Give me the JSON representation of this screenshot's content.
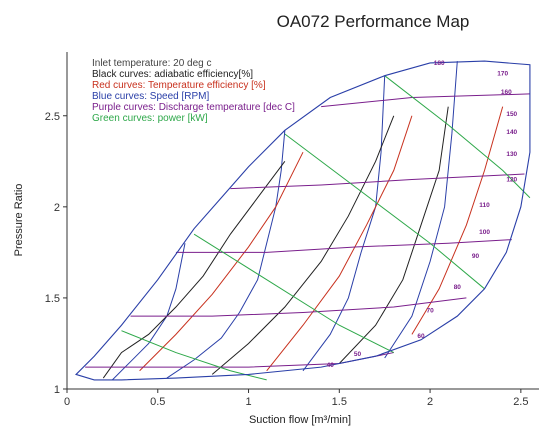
{
  "chart_data": {
    "type": "line",
    "title": "OA072  Performance Map",
    "xlabel": "Suction flow [m³/min]",
    "ylabel": "Pressure Ratio",
    "xlim": [
      0,
      2.6
    ],
    "ylim": [
      1,
      2.85
    ],
    "xticks": [
      "0",
      "0.5",
      "1",
      "1.5",
      "2",
      "2.5"
    ],
    "yticks": [
      "1",
      "1.5",
      "2",
      "2.5"
    ],
    "grid": false,
    "notes": [
      {
        "text": "Inlet temperature: 20 deg c",
        "color": "#444444"
      },
      {
        "text": "Black curves:  adiabatic efficiency[%]",
        "color": "#222222"
      },
      {
        "text": "Red curves: Temperature efficiency [%]",
        "color": "#c8311e"
      },
      {
        "text": "Blue curves: Speed [RPM]",
        "color": "#2a3fa8"
      },
      {
        "text": "Purple curves: Discharge temperature [dec C]",
        "color": "#7a1f8c"
      },
      {
        "text": "Green curves: power [kW]",
        "color": "#2ea84a"
      }
    ],
    "colors": {
      "adiabatic_efficiency": "#222222",
      "temperature_efficiency": "#c8311e",
      "speed": "#2a3fa8",
      "discharge_temperature": "#7a1f8c",
      "power": "#2ea84a"
    },
    "boundary": {
      "upper": [
        [
          0.05,
          1.08
        ],
        [
          0.15,
          1.18
        ],
        [
          0.3,
          1.35
        ],
        [
          0.5,
          1.6
        ],
        [
          0.7,
          1.88
        ],
        [
          0.85,
          2.05
        ],
        [
          1.0,
          2.22
        ],
        [
          1.2,
          2.42
        ],
        [
          1.45,
          2.6
        ],
        [
          1.75,
          2.72
        ],
        [
          2.0,
          2.79
        ],
        [
          2.3,
          2.8
        ],
        [
          2.55,
          2.78
        ]
      ],
      "lower": [
        [
          0.05,
          1.08
        ],
        [
          0.15,
          1.05
        ],
        [
          0.3,
          1.05
        ],
        [
          0.6,
          1.06
        ],
        [
          1.0,
          1.08
        ],
        [
          1.4,
          1.12
        ],
        [
          1.7,
          1.18
        ],
        [
          1.95,
          1.27
        ],
        [
          2.15,
          1.4
        ],
        [
          2.3,
          1.55
        ],
        [
          2.42,
          1.75
        ],
        [
          2.5,
          2.0
        ],
        [
          2.55,
          2.3
        ],
        [
          2.55,
          2.78
        ]
      ]
    },
    "series": [
      {
        "group": "speed",
        "points": [
          [
            0.55,
            1.06
          ],
          [
            0.7,
            1.16
          ],
          [
            0.85,
            1.28
          ],
          [
            0.95,
            1.42
          ],
          [
            1.05,
            1.6
          ],
          [
            1.1,
            1.8
          ],
          [
            1.15,
            2.0
          ],
          [
            1.18,
            2.2
          ],
          [
            1.2,
            2.42
          ]
        ]
      },
      {
        "group": "speed",
        "points": [
          [
            1.3,
            1.1
          ],
          [
            1.45,
            1.3
          ],
          [
            1.55,
            1.5
          ],
          [
            1.62,
            1.75
          ],
          [
            1.7,
            2.0
          ],
          [
            1.73,
            2.3
          ],
          [
            1.75,
            2.72
          ]
        ]
      },
      {
        "group": "speed",
        "points": [
          [
            1.75,
            1.17
          ],
          [
            1.9,
            1.4
          ],
          [
            2.0,
            1.7
          ],
          [
            2.08,
            2.0
          ],
          [
            2.12,
            2.4
          ],
          [
            2.15,
            2.8
          ]
        ]
      },
      {
        "group": "speed",
        "points": [
          [
            0.25,
            1.05
          ],
          [
            0.35,
            1.15
          ],
          [
            0.45,
            1.25
          ],
          [
            0.55,
            1.4
          ],
          [
            0.6,
            1.55
          ],
          [
            0.65,
            1.8
          ]
        ]
      },
      {
        "group": "adiabatic_efficiency",
        "points": [
          [
            0.2,
            1.06
          ],
          [
            0.3,
            1.2
          ],
          [
            0.45,
            1.3
          ],
          [
            0.6,
            1.45
          ],
          [
            0.75,
            1.62
          ],
          [
            0.9,
            1.85
          ],
          [
            1.05,
            2.05
          ],
          [
            1.2,
            2.25
          ]
        ]
      },
      {
        "group": "adiabatic_efficiency",
        "points": [
          [
            0.8,
            1.08
          ],
          [
            1.0,
            1.25
          ],
          [
            1.2,
            1.45
          ],
          [
            1.4,
            1.7
          ],
          [
            1.55,
            1.95
          ],
          [
            1.7,
            2.25
          ],
          [
            1.8,
            2.5
          ]
        ]
      },
      {
        "group": "adiabatic_efficiency",
        "points": [
          [
            1.5,
            1.14
          ],
          [
            1.7,
            1.35
          ],
          [
            1.85,
            1.6
          ],
          [
            1.95,
            1.9
          ],
          [
            2.05,
            2.2
          ],
          [
            2.1,
            2.55
          ]
        ]
      },
      {
        "group": "temperature_efficiency",
        "points": [
          [
            0.4,
            1.1
          ],
          [
            0.6,
            1.3
          ],
          [
            0.8,
            1.52
          ],
          [
            1.0,
            1.78
          ],
          [
            1.15,
            2.0
          ],
          [
            1.3,
            2.3
          ]
        ]
      },
      {
        "group": "temperature_efficiency",
        "points": [
          [
            1.1,
            1.1
          ],
          [
            1.3,
            1.35
          ],
          [
            1.5,
            1.62
          ],
          [
            1.65,
            1.9
          ],
          [
            1.8,
            2.2
          ],
          [
            1.9,
            2.5
          ]
        ]
      },
      {
        "group": "temperature_efficiency",
        "points": [
          [
            1.9,
            1.3
          ],
          [
            2.05,
            1.55
          ],
          [
            2.2,
            1.9
          ],
          [
            2.3,
            2.2
          ],
          [
            2.4,
            2.55
          ]
        ]
      },
      {
        "group": "discharge_temperature",
        "points": [
          [
            0.1,
            1.12
          ],
          [
            0.5,
            1.12
          ],
          [
            1.0,
            1.12
          ],
          [
            1.5,
            1.14
          ],
          [
            1.8,
            1.2
          ]
        ]
      },
      {
        "group": "discharge_temperature",
        "points": [
          [
            0.35,
            1.4
          ],
          [
            0.8,
            1.4
          ],
          [
            1.3,
            1.42
          ],
          [
            1.8,
            1.45
          ],
          [
            2.2,
            1.5
          ]
        ]
      },
      {
        "group": "discharge_temperature",
        "points": [
          [
            0.6,
            1.75
          ],
          [
            1.1,
            1.75
          ],
          [
            1.6,
            1.78
          ],
          [
            2.1,
            1.8
          ],
          [
            2.45,
            1.82
          ]
        ]
      },
      {
        "group": "discharge_temperature",
        "points": [
          [
            0.9,
            2.1
          ],
          [
            1.4,
            2.12
          ],
          [
            1.9,
            2.15
          ],
          [
            2.52,
            2.18
          ]
        ]
      },
      {
        "group": "discharge_temperature",
        "points": [
          [
            1.4,
            2.55
          ],
          [
            1.9,
            2.6
          ],
          [
            2.55,
            2.62
          ]
        ]
      },
      {
        "group": "power",
        "points": [
          [
            0.3,
            1.32
          ],
          [
            0.6,
            1.2
          ],
          [
            0.9,
            1.1
          ],
          [
            1.1,
            1.05
          ]
        ]
      },
      {
        "group": "power",
        "points": [
          [
            0.7,
            1.85
          ],
          [
            1.1,
            1.6
          ],
          [
            1.5,
            1.35
          ],
          [
            1.8,
            1.2
          ]
        ]
      },
      {
        "group": "power",
        "points": [
          [
            1.2,
            2.4
          ],
          [
            1.6,
            2.1
          ],
          [
            2.0,
            1.8
          ],
          [
            2.3,
            1.55
          ]
        ]
      },
      {
        "group": "power",
        "points": [
          [
            1.75,
            2.72
          ],
          [
            2.1,
            2.45
          ],
          [
            2.4,
            2.2
          ],
          [
            2.55,
            2.05
          ]
        ]
      }
    ],
    "curve_labels": [
      {
        "text": "180",
        "x": 2.05,
        "y": 2.78,
        "group": "discharge_temperature"
      },
      {
        "text": "170",
        "x": 2.4,
        "y": 2.72,
        "group": "discharge_temperature"
      },
      {
        "text": "160",
        "x": 2.42,
        "y": 2.62,
        "group": "discharge_temperature"
      },
      {
        "text": "150",
        "x": 2.45,
        "y": 2.5,
        "group": "discharge_temperature"
      },
      {
        "text": "140",
        "x": 2.45,
        "y": 2.4,
        "group": "discharge_temperature"
      },
      {
        "text": "130",
        "x": 2.45,
        "y": 2.28,
        "group": "discharge_temperature"
      },
      {
        "text": "120",
        "x": 2.45,
        "y": 2.14,
        "group": "discharge_temperature"
      },
      {
        "text": "110",
        "x": 2.3,
        "y": 2.0,
        "group": "discharge_temperature"
      },
      {
        "text": "100",
        "x": 2.3,
        "y": 1.85,
        "group": "discharge_temperature"
      },
      {
        "text": "90",
        "x": 2.25,
        "y": 1.72,
        "group": "discharge_temperature"
      },
      {
        "text": "80",
        "x": 2.15,
        "y": 1.55,
        "group": "discharge_temperature"
      },
      {
        "text": "70",
        "x": 2.0,
        "y": 1.42,
        "group": "discharge_temperature"
      },
      {
        "text": "60",
        "x": 1.95,
        "y": 1.28,
        "group": "discharge_temperature"
      },
      {
        "text": "50",
        "x": 1.6,
        "y": 1.18,
        "group": "discharge_temperature"
      },
      {
        "text": "40",
        "x": 1.45,
        "y": 1.12,
        "group": "discharge_temperature"
      }
    ]
  }
}
